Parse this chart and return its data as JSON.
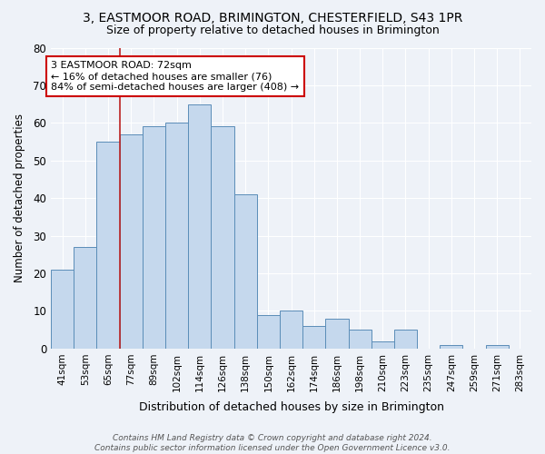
{
  "title": "3, EASTMOOR ROAD, BRIMINGTON, CHESTERFIELD, S43 1PR",
  "subtitle": "Size of property relative to detached houses in Brimington",
  "xlabel": "Distribution of detached houses by size in Brimington",
  "ylabel": "Number of detached properties",
  "categories": [
    "41sqm",
    "53sqm",
    "65sqm",
    "77sqm",
    "89sqm",
    "102sqm",
    "114sqm",
    "126sqm",
    "138sqm",
    "150sqm",
    "162sqm",
    "174sqm",
    "186sqm",
    "198sqm",
    "210sqm",
    "223sqm",
    "235sqm",
    "247sqm",
    "259sqm",
    "271sqm",
    "283sqm"
  ],
  "values": [
    21,
    27,
    55,
    57,
    59,
    60,
    65,
    59,
    41,
    9,
    10,
    6,
    8,
    5,
    2,
    5,
    0,
    1,
    0,
    1,
    0
  ],
  "bar_color": "#c5d8ed",
  "bar_edge_color": "#5b8db8",
  "background_color": "#eef2f8",
  "grid_color": "#ffffff",
  "ylim": [
    0,
    80
  ],
  "yticks": [
    0,
    10,
    20,
    30,
    40,
    50,
    60,
    70,
    80
  ],
  "property_line_x": 2.5,
  "annotation_text_line1": "3 EASTMOOR ROAD: 72sqm",
  "annotation_text_line2": "← 16% of detached houses are smaller (76)",
  "annotation_text_line3": "84% of semi-detached houses are larger (408) →",
  "annotation_box_color": "#ffffff",
  "annotation_box_edge": "#cc0000",
  "property_line_color": "#bb2222",
  "footer_line1": "Contains HM Land Registry data © Crown copyright and database right 2024.",
  "footer_line2": "Contains public sector information licensed under the Open Government Licence v3.0."
}
